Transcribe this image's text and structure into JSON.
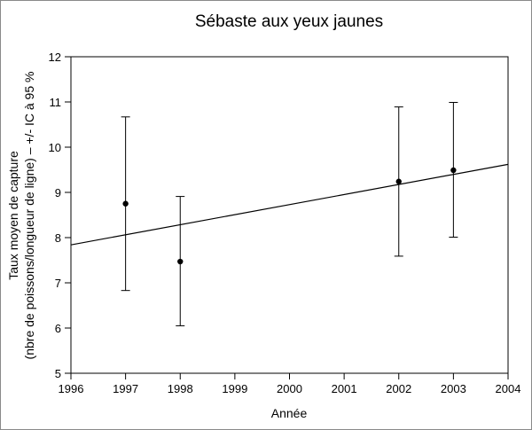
{
  "chart_data": {
    "type": "scatter",
    "title": "Sébaste aux yeux jaunes",
    "xlabel": "Année",
    "ylabel_lines": [
      "Taux moyen de capture",
      "(nbre de poissons/longueur de ligne)  –   +/- IC à 95 %"
    ],
    "xlim": [
      1996,
      2004
    ],
    "ylim": [
      5,
      12
    ],
    "x_ticks": [
      "1996",
      "1997",
      "1998",
      "1999",
      "2000",
      "2001",
      "2002",
      "2003",
      "2004"
    ],
    "y_ticks": [
      "5",
      "6",
      "7",
      "8",
      "9",
      "10",
      "11",
      "12"
    ],
    "points": [
      {
        "x": 1997,
        "y": 8.75,
        "ci_low": 6.83,
        "ci_high": 10.67
      },
      {
        "x": 1998,
        "y": 7.47,
        "ci_low": 6.05,
        "ci_high": 8.91
      },
      {
        "x": 2002,
        "y": 9.24,
        "ci_low": 7.59,
        "ci_high": 10.89
      },
      {
        "x": 2003,
        "y": 9.49,
        "ci_low": 8.01,
        "ci_high": 10.99
      }
    ],
    "trend_line": {
      "x": [
        1996,
        2004
      ],
      "y": [
        7.84,
        9.62
      ]
    },
    "grid": false,
    "legend": "none"
  }
}
